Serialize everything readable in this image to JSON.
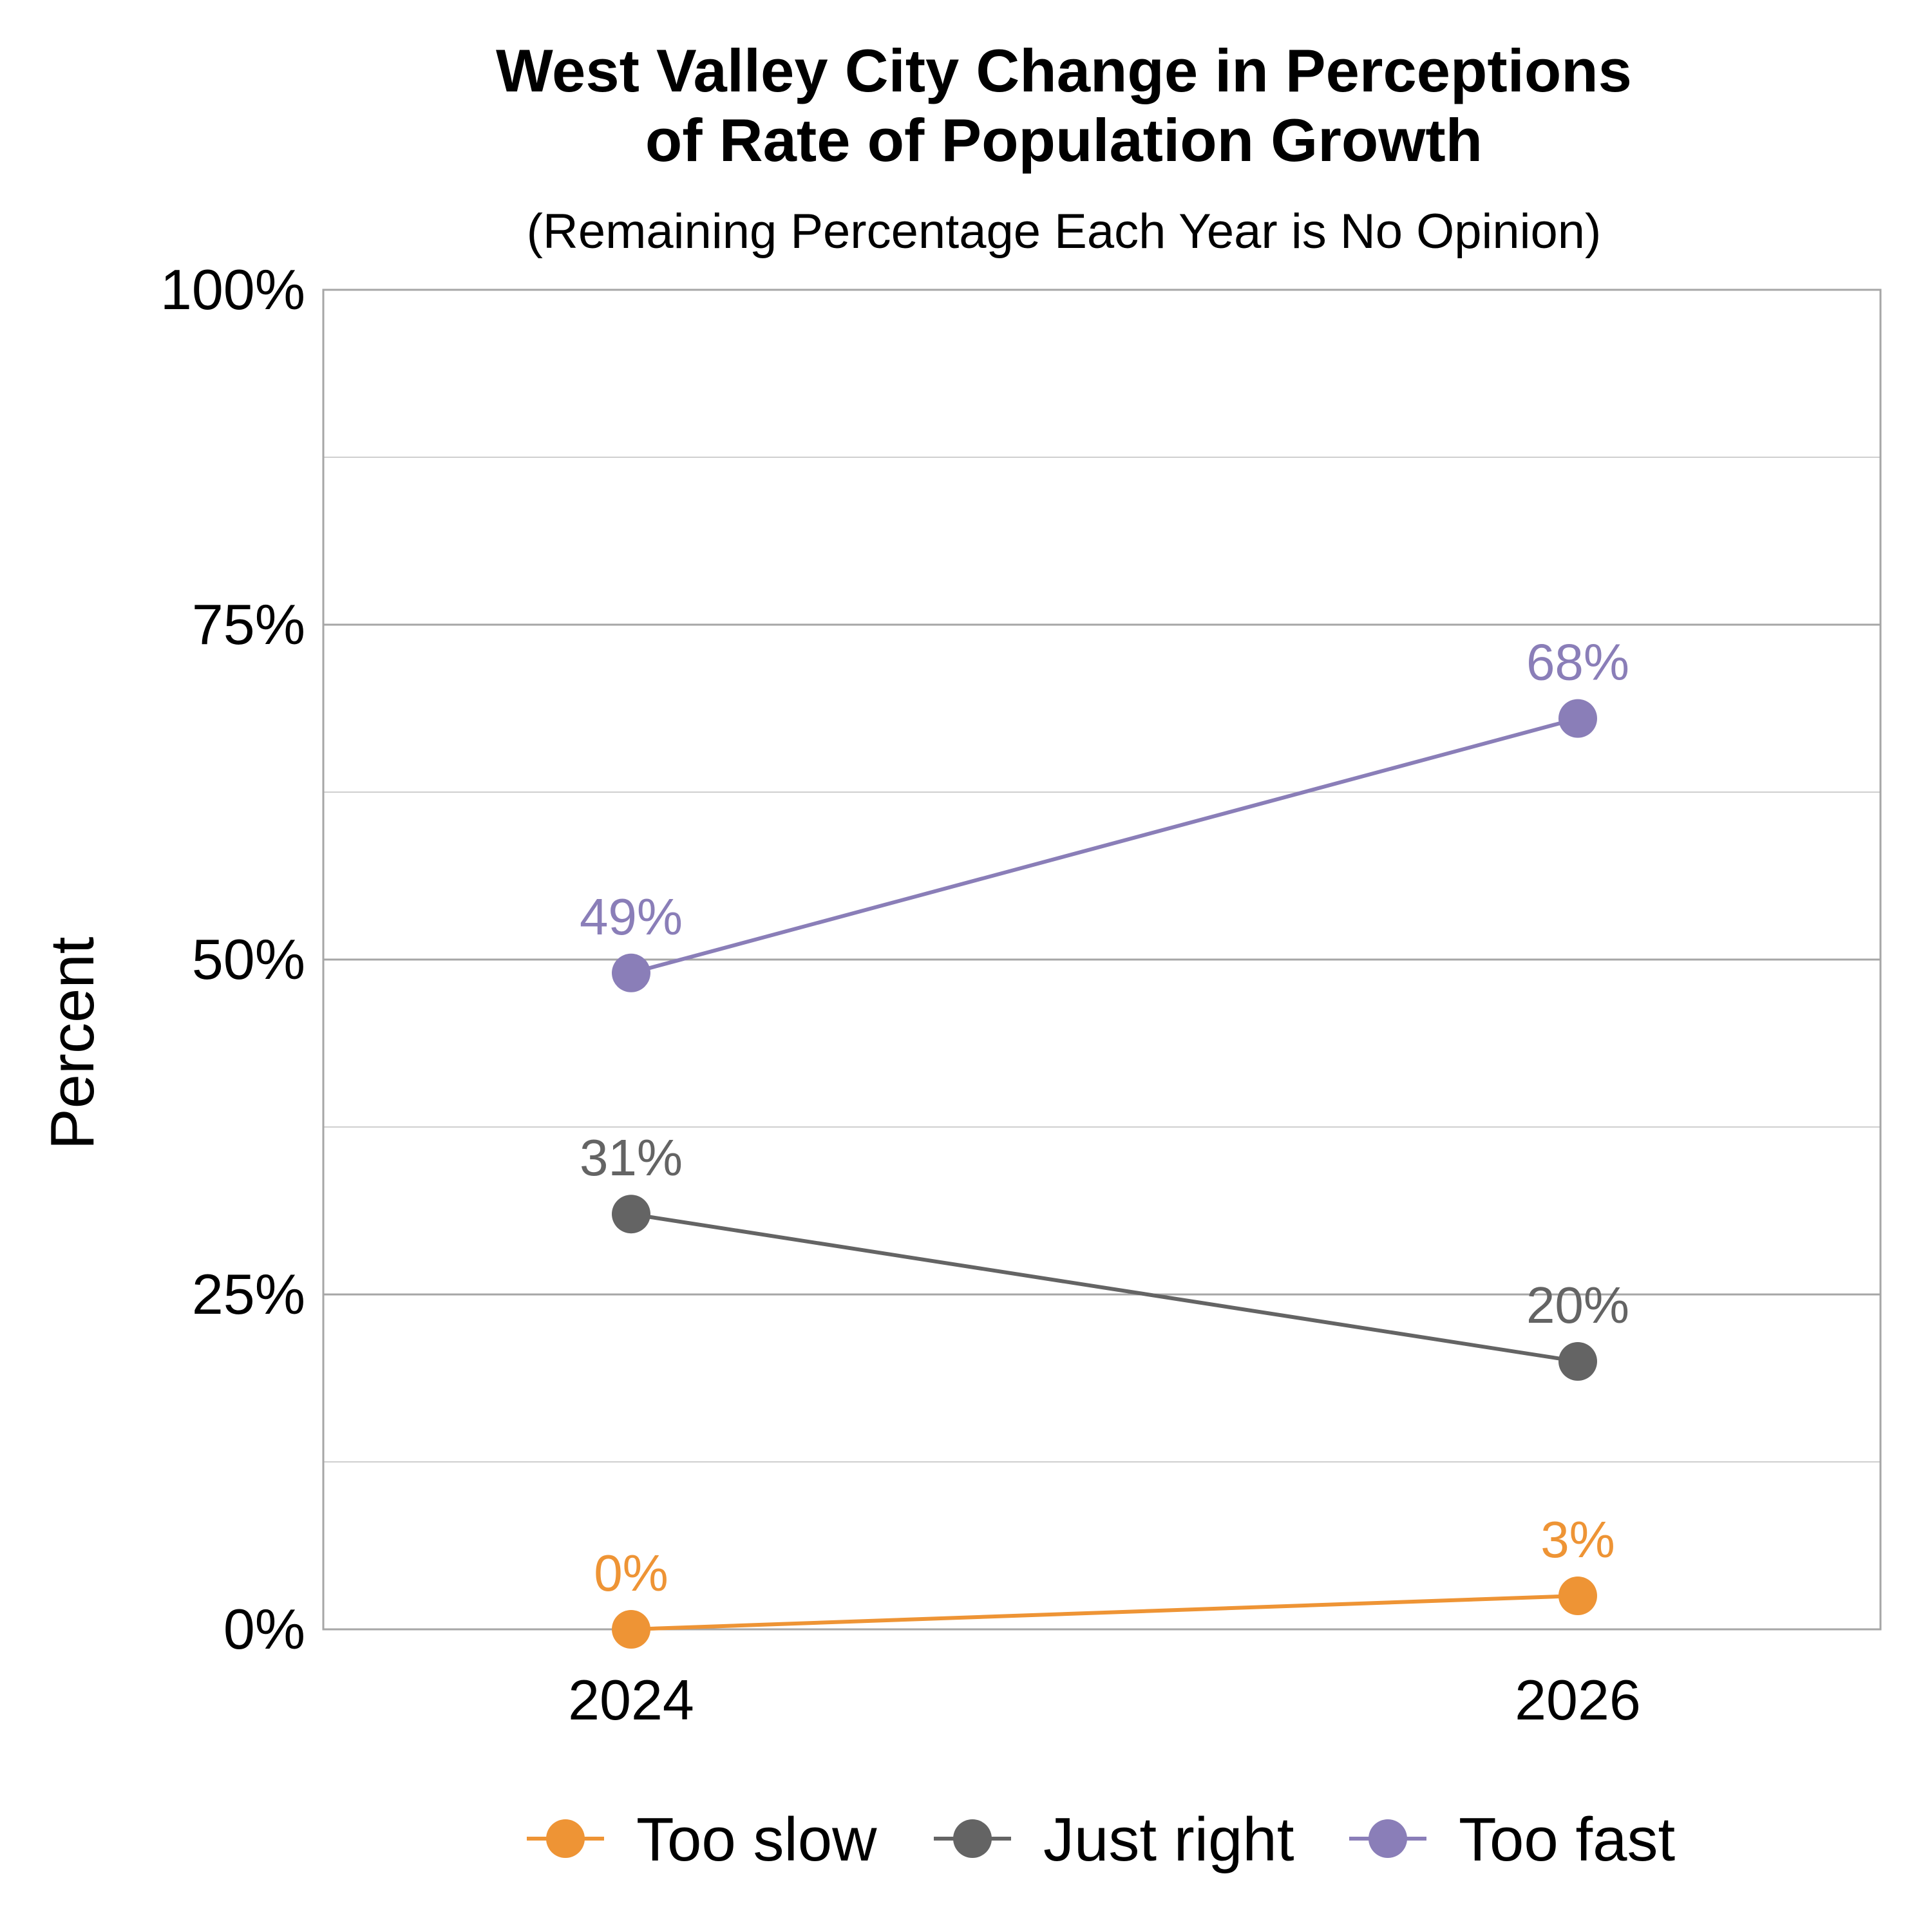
{
  "chart_data": {
    "type": "line",
    "title_line1": "West Valley City Change in Perceptions",
    "title_line2": "of Rate of Population Growth",
    "subtitle": "(Remaining Percentage Each Year is No Opinion)",
    "ylabel": "Percent",
    "xlabel": "",
    "x": [
      "2024",
      "2026"
    ],
    "ylim": [
      0,
      100
    ],
    "yticks": [
      0,
      25,
      50,
      75,
      100
    ],
    "ytick_labels": [
      "0%",
      "25%",
      "50%",
      "75%",
      "100%"
    ],
    "minor_gridlines": [
      12.5,
      37.5,
      62.5,
      87.5
    ],
    "grid": true,
    "legend_position": "bottom",
    "series": [
      {
        "name": "Too slow",
        "color": "#EE9435",
        "values": [
          0,
          2.5
        ],
        "labels": [
          "0%",
          "3%"
        ]
      },
      {
        "name": "Just right",
        "color": "#646464",
        "values": [
          31,
          20
        ],
        "labels": [
          "31%",
          "20%"
        ]
      },
      {
        "name": "Too fast",
        "color": "#8A7EB8",
        "values": [
          49,
          68
        ],
        "labels": [
          "49%",
          "68%"
        ]
      }
    ]
  }
}
